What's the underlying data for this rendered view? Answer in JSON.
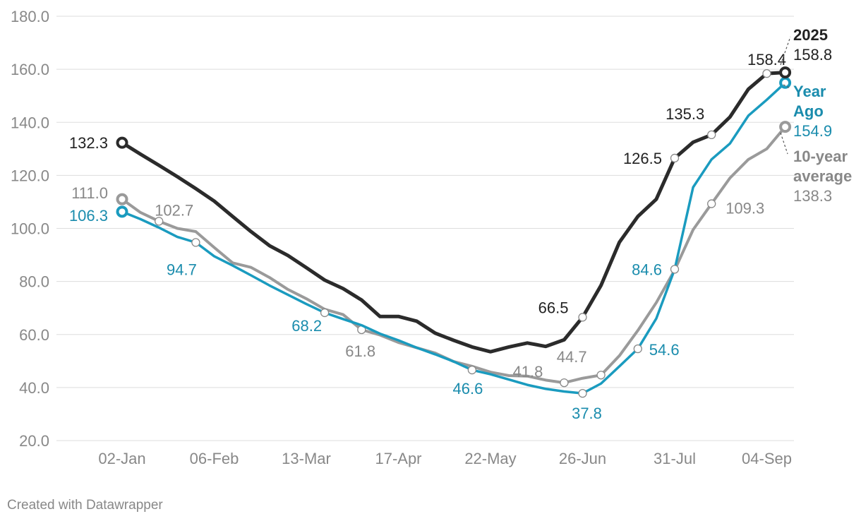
{
  "credit": "Created with Datawrapper",
  "chart_data": {
    "type": "line",
    "title": "",
    "xlabel": "",
    "ylabel": "",
    "ylim": [
      20,
      180
    ],
    "y_ticks": [
      "20.0",
      "40.0",
      "60.0",
      "80.0",
      "100.0",
      "120.0",
      "140.0",
      "160.0",
      "180.0"
    ],
    "x_ticks": [
      "02-Jan",
      "06-Feb",
      "13-Mar",
      "17-Apr",
      "22-May",
      "26-Jun",
      "31-Jul",
      "04-Sep"
    ],
    "grid": true,
    "colors": {
      "s2025": "#2b2b2b",
      "year_ago": "#1a9bbf",
      "avg10": "#9a9a9a",
      "grid": "#dddddd",
      "tick_text": "#888888"
    },
    "series": [
      {
        "name": "2025",
        "color": "#2b2b2b",
        "values": [
          132.3,
          128.0,
          123.8,
          119.5,
          115.0,
          110.3,
          104.5,
          98.8,
          93.5,
          89.8,
          85.2,
          80.5,
          77.3,
          73.0,
          66.8,
          66.8,
          65.0,
          60.5,
          57.8,
          55.3,
          53.5,
          55.3,
          56.8,
          55.5,
          58.0,
          66.5,
          78.5,
          94.8,
          104.5,
          111.0,
          126.5,
          132.5,
          135.3,
          142.0,
          152.5,
          158.4,
          158.8
        ],
        "labels": [
          {
            "i": 0,
            "text": "132.3"
          },
          {
            "i": 25,
            "text": "66.5"
          },
          {
            "i": 30,
            "text": "126.5"
          },
          {
            "i": 32,
            "text": "135.3"
          },
          {
            "i": 35,
            "text": "158.4"
          }
        ]
      },
      {
        "name": "Year Ago",
        "color": "#1a9bbf",
        "values": [
          106.3,
          103.5,
          100.3,
          96.8,
          94.7,
          89.5,
          86.0,
          82.3,
          78.5,
          75.0,
          71.5,
          68.2,
          65.8,
          63.5,
          60.3,
          57.8,
          55.0,
          52.5,
          49.8,
          46.6,
          45.0,
          43.0,
          41.0,
          39.5,
          38.5,
          37.8,
          41.5,
          48.0,
          54.6,
          66.0,
          84.6,
          115.5,
          126.0,
          132.0,
          142.5,
          148.5,
          154.9
        ],
        "labels": [
          {
            "i": 0,
            "text": "106.3"
          },
          {
            "i": 4,
            "text": "94.7"
          },
          {
            "i": 11,
            "text": "68.2"
          },
          {
            "i": 19,
            "text": "46.6"
          },
          {
            "i": 25,
            "text": "37.8"
          },
          {
            "i": 28,
            "text": "54.6"
          },
          {
            "i": 30,
            "text": "84.6"
          }
        ]
      },
      {
        "name": "10-year average",
        "color": "#9a9a9a",
        "values": [
          111.0,
          106.0,
          102.7,
          100.0,
          98.8,
          92.8,
          87.0,
          85.3,
          81.5,
          77.0,
          73.5,
          69.5,
          67.5,
          61.8,
          59.8,
          57.0,
          55.0,
          53.0,
          49.8,
          48.0,
          45.8,
          44.5,
          44.3,
          42.8,
          41.8,
          43.5,
          44.7,
          52.0,
          61.5,
          72.0,
          84.3,
          99.5,
          109.3,
          119.0,
          126.0,
          130.0,
          138.3
        ],
        "labels": [
          {
            "i": 0,
            "text": "111.0"
          },
          {
            "i": 2,
            "text": "102.7"
          },
          {
            "i": 13,
            "text": "61.8"
          },
          {
            "i": 24,
            "text": "41.8"
          },
          {
            "i": 26,
            "text": "44.7"
          },
          {
            "i": 32,
            "text": "109.3"
          }
        ]
      }
    ],
    "end_labels": [
      {
        "name": "2025",
        "value": "158.8"
      },
      {
        "name": "Year\nAgo",
        "value": "154.9"
      },
      {
        "name": "10-year\naverage",
        "value": "138.3"
      }
    ]
  }
}
